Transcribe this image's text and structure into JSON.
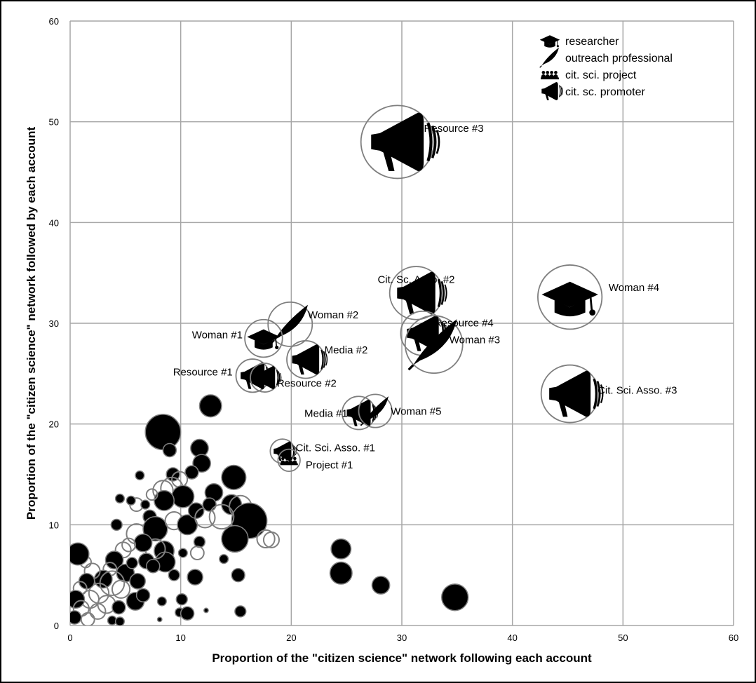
{
  "chart_data": {
    "type": "scatter",
    "title": "",
    "xlabel": "Proportion of the \"citizen science\" network following each account",
    "ylabel": "Proportion of the \"citizen science\" network followed by each account",
    "xlim": [
      0,
      60
    ],
    "ylim": [
      0,
      60
    ],
    "xticks": [
      0,
      10,
      20,
      30,
      40,
      50,
      60
    ],
    "yticks": [
      0,
      10,
      20,
      30,
      40,
      50,
      60
    ],
    "grid": true,
    "legend_position": "top-right",
    "legend": [
      {
        "icon": "researcher",
        "label": "researcher"
      },
      {
        "icon": "outreach",
        "label": "outreach professional"
      },
      {
        "icon": "project",
        "label": "cit. sci. project"
      },
      {
        "icon": "promoter",
        "label": "cit. sc. promoter"
      }
    ],
    "labeled_accounts": [
      {
        "label": "Resource #3",
        "x": 29.6,
        "y": 48.0,
        "r": 3.3,
        "icon": "promoter",
        "label_dx": 2.4,
        "label_dy": 1.0
      },
      {
        "label": "Woman #4",
        "x": 45.2,
        "y": 32.6,
        "r": 2.9,
        "icon": "researcher",
        "label_dx": 3.5,
        "label_dy": 0.6
      },
      {
        "label": "Cit. Sc. Asso. #2",
        "x": 31.3,
        "y": 33.0,
        "r": 2.4,
        "icon": "promoter",
        "label_dx": 0.0,
        "label_dy": 1.0
      },
      {
        "label": "Cit. Sci. Asso. #3",
        "x": 45.2,
        "y": 23.0,
        "r": 2.6,
        "icon": "promoter",
        "label_dx": 2.5,
        "label_dy": 0.0
      },
      {
        "label": "Woman #2",
        "x": 19.9,
        "y": 29.9,
        "r": 2.0,
        "icon": "outreach",
        "label_dx": 1.6,
        "label_dy": 0.6
      },
      {
        "label": "Woman #1",
        "x": 17.5,
        "y": 28.5,
        "r": 1.7,
        "icon": "researcher",
        "label_dx": -1.9,
        "label_dy": 0.0
      },
      {
        "label": "Resource #4",
        "x": 31.9,
        "y": 29.0,
        "r": 2.0,
        "icon": "promoter",
        "label_dx": 1.0,
        "label_dy": 0.7
      },
      {
        "label": "Woman #3",
        "x": 32.9,
        "y": 27.9,
        "r": 2.6,
        "icon": "outreach",
        "label_dx": 1.4,
        "label_dy": 0.1
      },
      {
        "label": "Media #2",
        "x": 21.3,
        "y": 26.4,
        "r": 1.7,
        "icon": "promoter",
        "label_dx": 1.7,
        "label_dy": 0.6
      },
      {
        "label": "Resource #1",
        "x": 16.5,
        "y": 24.8,
        "r": 1.5,
        "icon": "promoter",
        "label_dx": -1.8,
        "label_dy": 0.0
      },
      {
        "label": "Resource #2",
        "x": 17.6,
        "y": 24.6,
        "r": 1.3,
        "icon": "promoter",
        "label_dx": 1.1,
        "label_dy": -0.9
      },
      {
        "label": "Media #1",
        "x": 26.1,
        "y": 21.1,
        "r": 1.5,
        "icon": "promoter",
        "label_dx": -1.0,
        "label_dy": -0.4
      },
      {
        "label": "Woman #5",
        "x": 27.6,
        "y": 21.3,
        "r": 1.5,
        "icon": "outreach",
        "label_dx": 1.4,
        "label_dy": -0.4
      },
      {
        "label": "Cit. Sci. Asso. #1",
        "x": 19.2,
        "y": 17.3,
        "r": 1.1,
        "icon": "promoter",
        "label_dx": 1.2,
        "label_dy": 0.0
      },
      {
        "label": "Project #1",
        "x": 19.8,
        "y": 16.4,
        "r": 1.0,
        "icon": "project",
        "label_dx": 1.5,
        "label_dy": -0.8
      }
    ],
    "unlabeled_accounts": [
      {
        "x": 8.4,
        "y": 19.2,
        "r": 1.6,
        "style": "filled"
      },
      {
        "x": 12.7,
        "y": 21.8,
        "r": 1.0,
        "style": "filled"
      },
      {
        "x": 9.0,
        "y": 17.4,
        "r": 0.6,
        "style": "filled"
      },
      {
        "x": 11.7,
        "y": 17.6,
        "r": 0.8,
        "style": "filled"
      },
      {
        "x": 11.9,
        "y": 16.1,
        "r": 0.8,
        "style": "filled"
      },
      {
        "x": 11.0,
        "y": 15.2,
        "r": 0.6,
        "style": "filled"
      },
      {
        "x": 9.3,
        "y": 15.0,
        "r": 0.6,
        "style": "filled"
      },
      {
        "x": 8.4,
        "y": 13.4,
        "r": 0.9,
        "style": "open"
      },
      {
        "x": 9.9,
        "y": 14.5,
        "r": 0.7,
        "style": "open"
      },
      {
        "x": 9.2,
        "y": 13.6,
        "r": 1.0,
        "style": "open"
      },
      {
        "x": 10.2,
        "y": 12.8,
        "r": 1.0,
        "style": "filled"
      },
      {
        "x": 8.5,
        "y": 12.4,
        "r": 0.9,
        "style": "filled"
      },
      {
        "x": 7.4,
        "y": 13.0,
        "r": 0.5,
        "style": "open"
      },
      {
        "x": 6.3,
        "y": 14.9,
        "r": 0.4,
        "style": "filled"
      },
      {
        "x": 6.0,
        "y": 12.0,
        "r": 0.6,
        "style": "open"
      },
      {
        "x": 5.5,
        "y": 12.4,
        "r": 0.4,
        "style": "filled"
      },
      {
        "x": 6.8,
        "y": 12.0,
        "r": 0.4,
        "style": "filled"
      },
      {
        "x": 4.5,
        "y": 12.6,
        "r": 0.4,
        "style": "filled"
      },
      {
        "x": 4.2,
        "y": 10.0,
        "r": 0.5,
        "style": "filled"
      },
      {
        "x": 7.2,
        "y": 10.8,
        "r": 0.6,
        "style": "filled"
      },
      {
        "x": 6.0,
        "y": 9.1,
        "r": 0.9,
        "style": "open"
      },
      {
        "x": 7.7,
        "y": 9.6,
        "r": 1.1,
        "style": "filled"
      },
      {
        "x": 9.4,
        "y": 10.4,
        "r": 0.8,
        "style": "open"
      },
      {
        "x": 10.6,
        "y": 10.0,
        "r": 0.9,
        "style": "filled"
      },
      {
        "x": 11.4,
        "y": 11.4,
        "r": 0.7,
        "style": "filled"
      },
      {
        "x": 12.2,
        "y": 10.7,
        "r": 0.9,
        "style": "open"
      },
      {
        "x": 13.0,
        "y": 13.2,
        "r": 0.8,
        "style": "filled"
      },
      {
        "x": 12.6,
        "y": 12.0,
        "r": 0.6,
        "style": "filled"
      },
      {
        "x": 14.8,
        "y": 14.7,
        "r": 1.1,
        "style": "filled"
      },
      {
        "x": 14.6,
        "y": 12.0,
        "r": 0.9,
        "style": "filled"
      },
      {
        "x": 15.4,
        "y": 11.8,
        "r": 1.0,
        "style": "open"
      },
      {
        "x": 16.2,
        "y": 10.4,
        "r": 1.6,
        "style": "filled"
      },
      {
        "x": 13.7,
        "y": 10.8,
        "r": 1.1,
        "style": "open"
      },
      {
        "x": 14.9,
        "y": 8.6,
        "r": 1.2,
        "style": "filled"
      },
      {
        "x": 17.7,
        "y": 8.6,
        "r": 0.8,
        "style": "open"
      },
      {
        "x": 18.2,
        "y": 8.5,
        "r": 0.7,
        "style": "open"
      },
      {
        "x": 11.7,
        "y": 8.3,
        "r": 0.5,
        "style": "filled"
      },
      {
        "x": 11.5,
        "y": 7.2,
        "r": 0.6,
        "style": "open"
      },
      {
        "x": 10.2,
        "y": 7.2,
        "r": 0.4,
        "style": "filled"
      },
      {
        "x": 13.9,
        "y": 6.6,
        "r": 0.4,
        "style": "filled"
      },
      {
        "x": 8.5,
        "y": 7.4,
        "r": 0.9,
        "style": "filled"
      },
      {
        "x": 8.6,
        "y": 6.3,
        "r": 0.9,
        "style": "filled"
      },
      {
        "x": 7.7,
        "y": 7.6,
        "r": 0.9,
        "style": "open"
      },
      {
        "x": 6.6,
        "y": 8.2,
        "r": 0.8,
        "style": "filled"
      },
      {
        "x": 6.9,
        "y": 6.4,
        "r": 0.7,
        "style": "filled"
      },
      {
        "x": 5.3,
        "y": 8.0,
        "r": 0.6,
        "style": "open"
      },
      {
        "x": 4.8,
        "y": 7.5,
        "r": 0.7,
        "style": "open"
      },
      {
        "x": 4.0,
        "y": 6.5,
        "r": 0.8,
        "style": "filled"
      },
      {
        "x": 5.0,
        "y": 5.2,
        "r": 0.8,
        "style": "filled"
      },
      {
        "x": 3.6,
        "y": 5.6,
        "r": 0.6,
        "style": "open"
      },
      {
        "x": 3.0,
        "y": 4.6,
        "r": 0.8,
        "style": "filled"
      },
      {
        "x": 3.8,
        "y": 4.2,
        "r": 1.1,
        "style": "open"
      },
      {
        "x": 4.6,
        "y": 3.6,
        "r": 0.8,
        "style": "open"
      },
      {
        "x": 2.6,
        "y": 3.2,
        "r": 0.9,
        "style": "open"
      },
      {
        "x": 2.0,
        "y": 5.4,
        "r": 0.7,
        "style": "open"
      },
      {
        "x": 1.4,
        "y": 6.3,
        "r": 0.5,
        "style": "open"
      },
      {
        "x": 0.7,
        "y": 7.1,
        "r": 1.0,
        "style": "filled"
      },
      {
        "x": 1.5,
        "y": 4.4,
        "r": 0.7,
        "style": "filled"
      },
      {
        "x": 0.9,
        "y": 3.7,
        "r": 0.6,
        "style": "open"
      },
      {
        "x": 1.8,
        "y": 2.6,
        "r": 0.8,
        "style": "open"
      },
      {
        "x": 0.5,
        "y": 2.6,
        "r": 0.8,
        "style": "filled"
      },
      {
        "x": 1.0,
        "y": 1.7,
        "r": 0.7,
        "style": "open"
      },
      {
        "x": 2.5,
        "y": 1.4,
        "r": 0.7,
        "style": "open"
      },
      {
        "x": 3.3,
        "y": 2.1,
        "r": 0.8,
        "style": "open"
      },
      {
        "x": 4.4,
        "y": 1.8,
        "r": 0.6,
        "style": "filled"
      },
      {
        "x": 0.4,
        "y": 0.8,
        "r": 0.6,
        "style": "filled"
      },
      {
        "x": 1.6,
        "y": 0.6,
        "r": 0.6,
        "style": "open"
      },
      {
        "x": 3.8,
        "y": 0.5,
        "r": 0.4,
        "style": "filled"
      },
      {
        "x": 4.5,
        "y": 0.4,
        "r": 0.4,
        "style": "filled"
      },
      {
        "x": 5.9,
        "y": 2.4,
        "r": 0.8,
        "style": "filled"
      },
      {
        "x": 6.1,
        "y": 4.4,
        "r": 0.7,
        "style": "filled"
      },
      {
        "x": 6.6,
        "y": 3.0,
        "r": 0.6,
        "style": "filled"
      },
      {
        "x": 7.5,
        "y": 5.9,
        "r": 0.6,
        "style": "filled"
      },
      {
        "x": 5.6,
        "y": 6.2,
        "r": 0.5,
        "style": "filled"
      },
      {
        "x": 9.4,
        "y": 5.0,
        "r": 0.5,
        "style": "filled"
      },
      {
        "x": 8.3,
        "y": 2.4,
        "r": 0.4,
        "style": "filled"
      },
      {
        "x": 10.1,
        "y": 2.6,
        "r": 0.5,
        "style": "filled"
      },
      {
        "x": 9.9,
        "y": 1.3,
        "r": 0.4,
        "style": "filled"
      },
      {
        "x": 10.6,
        "y": 1.2,
        "r": 0.6,
        "style": "filled"
      },
      {
        "x": 11.3,
        "y": 4.8,
        "r": 0.7,
        "style": "filled"
      },
      {
        "x": 8.1,
        "y": 0.6,
        "r": 0.2,
        "style": "filled"
      },
      {
        "x": 12.3,
        "y": 1.5,
        "r": 0.2,
        "style": "filled"
      },
      {
        "x": 15.2,
        "y": 5.0,
        "r": 0.6,
        "style": "filled"
      },
      {
        "x": 15.4,
        "y": 1.4,
        "r": 0.5,
        "style": "filled"
      },
      {
        "x": 24.5,
        "y": 7.6,
        "r": 0.9,
        "style": "filled"
      },
      {
        "x": 24.5,
        "y": 5.2,
        "r": 1.0,
        "style": "filled"
      },
      {
        "x": 28.1,
        "y": 4.0,
        "r": 0.8,
        "style": "filled"
      },
      {
        "x": 34.8,
        "y": 2.8,
        "r": 1.2,
        "style": "filled"
      }
    ]
  }
}
